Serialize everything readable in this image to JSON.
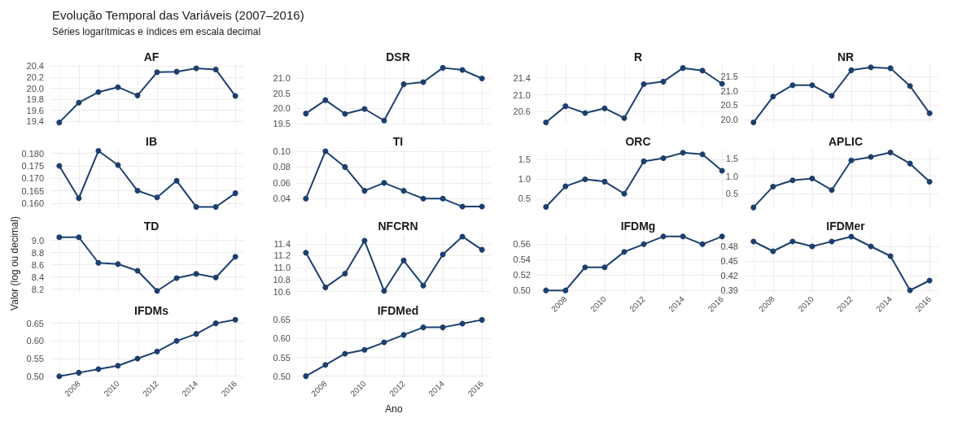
{
  "chart_data": [
    {
      "type": "line",
      "title": "AF",
      "annotations": [
        "Evolução Temporal das Variáveis (2007–2016)",
        "Séries logarítmicas e índices em escala decimal"
      ],
      "x": [
        2007,
        2008,
        2009,
        2010,
        2011,
        2012,
        2013,
        2014,
        2015,
        2016
      ],
      "values": [
        19.38,
        19.74,
        19.93,
        20.02,
        19.87,
        20.29,
        20.3,
        20.36,
        20.34,
        19.86
      ],
      "color": "#1c3f6e",
      "marker": "circle",
      "grid": true,
      "xlim": [
        2006.55,
        2016.45
      ],
      "xticks": [
        2008,
        2010,
        2012,
        2014,
        2016
      ],
      "ylim": [
        19.36,
        20.42
      ],
      "yticks": [
        19.4,
        19.6,
        19.8,
        {
          "value": 20,
          "label": "20.0"
        },
        20.2,
        20.4
      ],
      "tick_labels": "y"
    },
    {
      "type": "line",
      "title": "DSR",
      "x": [
        2007,
        2008,
        2009,
        2010,
        2011,
        2012,
        2013,
        2014,
        2015,
        2016
      ],
      "values": [
        19.83,
        20.27,
        19.82,
        19.98,
        19.6,
        20.79,
        20.86,
        21.33,
        21.26,
        20.98
      ],
      "color": "#1c3f6e",
      "marker": "circle",
      "grid": true,
      "xlim": [
        2006.55,
        2016.45
      ],
      "xticks": [
        2008,
        2010,
        2012,
        2014,
        2016
      ],
      "ylim": [
        19.5,
        21.42
      ],
      "yticks": [
        19.5,
        {
          "value": 20,
          "label": "20.0"
        },
        20.5,
        {
          "value": 21,
          "label": "21.0"
        }
      ],
      "tick_labels": "y"
    },
    {
      "type": "line",
      "title": "R",
      "x": [
        2007,
        2008,
        2009,
        2010,
        2011,
        2012,
        2013,
        2014,
        2015,
        2016
      ],
      "values": [
        20.35,
        20.73,
        20.57,
        20.68,
        20.45,
        21.25,
        21.31,
        21.63,
        21.57,
        21.26
      ],
      "color": "#1c3f6e",
      "marker": "circle",
      "grid": true,
      "xlim": [
        2006.55,
        2016.45
      ],
      "xticks": [
        2008,
        2010,
        2012,
        2014,
        2016
      ],
      "ylim": [
        20.32,
        21.7
      ],
      "yticks": [
        20.6,
        {
          "value": 21,
          "label": "21.0"
        },
        21.4
      ],
      "tick_labels": "y"
    },
    {
      "type": "line",
      "title": "NR",
      "x": [
        2007,
        2008,
        2009,
        2010,
        2011,
        2012,
        2013,
        2014,
        2015,
        2016
      ],
      "values": [
        19.9,
        20.8,
        21.2,
        21.2,
        20.83,
        21.72,
        21.82,
        21.79,
        21.17,
        20.22
      ],
      "color": "#1c3f6e",
      "marker": "circle",
      "grid": true,
      "xlim": [
        2006.55,
        2016.45
      ],
      "xticks": [
        2008,
        2010,
        2012,
        2014,
        2016
      ],
      "ylim": [
        19.86,
        21.9
      ],
      "yticks": [
        {
          "value": 20,
          "label": "20.0"
        },
        20.5,
        {
          "value": 21,
          "label": "21.0"
        },
        21.5
      ],
      "tick_labels": "y"
    },
    {
      "type": "line",
      "title": "IB",
      "x": [
        2007,
        2008,
        2009,
        2010,
        2011,
        2012,
        2013,
        2014,
        2015,
        2016
      ],
      "values": [
        0.175,
        0.162,
        0.181,
        0.1753,
        0.165,
        0.1623,
        0.169,
        0.1585,
        0.1585,
        0.164
      ],
      "color": "#1c3f6e",
      "marker": "circle",
      "grid": true,
      "xlim": [
        2006.55,
        2016.45
      ],
      "xticks": [
        2008,
        2010,
        2012,
        2014,
        2016
      ],
      "ylim": [
        0.158,
        0.1815
      ],
      "yticks": [
        {
          "value": 0.16,
          "label": "0.160"
        },
        0.165,
        {
          "value": 0.17,
          "label": "0.170"
        },
        0.175,
        {
          "value": 0.18,
          "label": "0.180"
        }
      ],
      "tick_labels": "y"
    },
    {
      "type": "line",
      "title": "TI",
      "x": [
        2007,
        2008,
        2009,
        2010,
        2011,
        2012,
        2013,
        2014,
        2015,
        2016
      ],
      "values": [
        0.04,
        0.1,
        0.08,
        0.05,
        0.06,
        0.05,
        0.04,
        0.04,
        0.03,
        0.03
      ],
      "color": "#1c3f6e",
      "marker": "circle",
      "grid": true,
      "xlim": [
        2006.55,
        2016.45
      ],
      "xticks": [
        2008,
        2010,
        2012,
        2014,
        2016
      ],
      "ylim": [
        0.028,
        0.102
      ],
      "yticks": [
        0.04,
        0.06,
        0.08,
        {
          "value": 0.1,
          "label": "0.10"
        }
      ],
      "tick_labels": "y"
    },
    {
      "type": "line",
      "title": "ORC",
      "x": [
        2007,
        2008,
        2009,
        2010,
        2011,
        2012,
        2013,
        2014,
        2015,
        2016
      ],
      "values": [
        0.28,
        0.81,
        0.99,
        0.93,
        0.62,
        1.45,
        1.53,
        1.67,
        1.63,
        1.21
      ],
      "color": "#1c3f6e",
      "marker": "circle",
      "grid": true,
      "xlim": [
        2006.55,
        2016.45
      ],
      "xticks": [
        2008,
        2010,
        2012,
        2014,
        2016
      ],
      "ylim": [
        0.25,
        1.75
      ],
      "yticks": [
        0.5,
        {
          "value": 1,
          "label": "1.0"
        },
        1.5
      ],
      "tick_labels": "y"
    },
    {
      "type": "line",
      "title": "APLIC",
      "x": [
        2007,
        2008,
        2009,
        2010,
        2011,
        2012,
        2013,
        2014,
        2015,
        2016
      ],
      "values": [
        0.1,
        0.7,
        0.88,
        0.93,
        0.6,
        1.45,
        1.55,
        1.68,
        1.36,
        0.84
      ],
      "color": "#1c3f6e",
      "marker": "circle",
      "grid": true,
      "xlim": [
        2006.55,
        2016.45
      ],
      "xticks": [
        2008,
        2010,
        2012,
        2014,
        2016
      ],
      "ylim": [
        0.08,
        1.76
      ],
      "yticks": [
        0.5,
        {
          "value": 1,
          "label": "1.0"
        },
        1.5
      ],
      "tick_labels": "y"
    },
    {
      "type": "line",
      "title": "TD",
      "ylabel": "Valor (log ou decimal)",
      "x": [
        2007,
        2008,
        2009,
        2010,
        2011,
        2012,
        2013,
        2014,
        2015,
        2016
      ],
      "values": [
        9.05,
        9.05,
        8.63,
        8.61,
        8.5,
        8.17,
        8.38,
        8.45,
        8.39,
        8.73
      ],
      "color": "#1c3f6e",
      "marker": "circle",
      "grid": true,
      "xlim": [
        2006.55,
        2016.45
      ],
      "xticks": [
        2008,
        2010,
        2012,
        2014,
        2016
      ],
      "ylim": [
        8.14,
        9.1
      ],
      "yticks": [
        8.2,
        8.4,
        8.6,
        8.8,
        {
          "value": 9,
          "label": "9.0"
        }
      ],
      "tick_labels": "y"
    },
    {
      "type": "line",
      "title": "NFCRN",
      "x": [
        2007,
        2008,
        2009,
        2010,
        2011,
        2012,
        2013,
        2014,
        2015,
        2016
      ],
      "values": [
        11.25,
        10.67,
        10.9,
        11.45,
        10.61,
        11.12,
        10.7,
        11.22,
        11.52,
        11.3
      ],
      "color": "#1c3f6e",
      "marker": "circle",
      "grid": true,
      "xlim": [
        2006.55,
        2016.45
      ],
      "xticks": [
        2008,
        2010,
        2012,
        2014,
        2016
      ],
      "ylim": [
        10.58,
        11.56
      ],
      "yticks": [
        10.6,
        10.8,
        {
          "value": 11,
          "label": "11.0"
        },
        11.2,
        11.4
      ],
      "tick_labels": "y"
    },
    {
      "type": "line",
      "title": "IFDMg",
      "x": [
        2007,
        2008,
        2009,
        2010,
        2011,
        2012,
        2013,
        2014,
        2015,
        2016
      ],
      "values": [
        0.5,
        0.5,
        0.53,
        0.53,
        0.55,
        0.56,
        0.57,
        0.57,
        0.56,
        0.57
      ],
      "color": "#1c3f6e",
      "marker": "circle",
      "grid": true,
      "xlim": [
        2006.55,
        2016.45
      ],
      "xticks": [
        2008,
        2010,
        2012,
        2014,
        2016
      ],
      "ylim": [
        0.497,
        0.573
      ],
      "yticks": [
        {
          "value": 0.5,
          "label": "0.50"
        },
        0.52,
        0.54,
        0.56
      ]
    },
    {
      "type": "line",
      "title": "IFDMer",
      "x": [
        2007,
        2008,
        2009,
        2010,
        2011,
        2012,
        2013,
        2014,
        2015,
        2016
      ],
      "values": [
        0.49,
        0.47,
        0.49,
        0.48,
        0.49,
        0.5,
        0.48,
        0.46,
        0.39,
        0.41
      ],
      "color": "#1c3f6e",
      "marker": "circle",
      "grid": true,
      "xlim": [
        2006.55,
        2016.45
      ],
      "xticks": [
        2008,
        2010,
        2012,
        2014,
        2016
      ],
      "ylim": [
        0.385,
        0.505
      ],
      "yticks": [
        0.39,
        0.42,
        0.45,
        0.48
      ]
    },
    {
      "type": "line",
      "title": "IFDMs",
      "x": [
        2007,
        2008,
        2009,
        2010,
        2011,
        2012,
        2013,
        2014,
        2015,
        2016
      ],
      "values": [
        0.5,
        0.51,
        0.52,
        0.53,
        0.55,
        0.57,
        0.6,
        0.62,
        0.65,
        0.66
      ],
      "color": "#1c3f6e",
      "marker": "circle",
      "grid": true,
      "xlim": [
        2006.55,
        2016.45
      ],
      "xticks": [
        2008,
        2010,
        2012,
        2014,
        2016
      ],
      "ylim": [
        0.497,
        0.663
      ],
      "yticks": [
        {
          "value": 0.5,
          "label": "0.50"
        },
        0.55,
        {
          "value": 0.6,
          "label": "0.60"
        },
        0.65
      ]
    },
    {
      "type": "line",
      "title": "IFDMed",
      "xlabel": "Ano",
      "x": [
        2007,
        2008,
        2009,
        2010,
        2011,
        2012,
        2013,
        2014,
        2015,
        2016
      ],
      "values": [
        0.5,
        0.53,
        0.56,
        0.57,
        0.59,
        0.61,
        0.63,
        0.63,
        0.64,
        0.65
      ],
      "color": "#1c3f6e",
      "marker": "circle",
      "grid": true,
      "xlim": [
        2006.55,
        2016.45
      ],
      "xticks": [
        2008,
        2010,
        2012,
        2014,
        2016
      ],
      "ylim": [
        0.497,
        0.653
      ],
      "yticks": [
        {
          "value": 0.5,
          "label": "0.50"
        },
        0.55,
        {
          "value": 0.6,
          "label": "0.60"
        },
        0.65
      ]
    }
  ]
}
